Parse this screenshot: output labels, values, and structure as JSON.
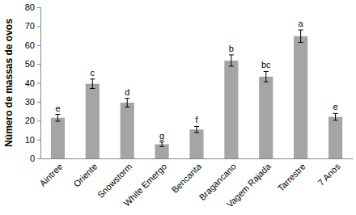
{
  "chart_data": {
    "type": "bar",
    "y_label": "Número de massas de ovos",
    "categories": [
      "Aintree",
      "Oriente",
      "Snowstorm",
      "White Emergo",
      "Bencanta",
      "Bragancano",
      "Vagem Rajada",
      "Tarrestre",
      "7 Anos"
    ],
    "values": [
      21.5,
      39.5,
      29.5,
      7.5,
      15.3,
      51.8,
      43.3,
      64.7,
      22
    ],
    "errors": [
      1.8,
      2.5,
      2.3,
      1.2,
      1.6,
      3,
      2.7,
      3.3,
      1.8
    ],
    "annotations": [
      "e",
      "c",
      "d",
      "g",
      "f",
      "b",
      "bc",
      "a",
      "e"
    ],
    "color": "#a5a5a5",
    "ylim": [
      0,
      80
    ],
    "yticks": [
      0,
      10,
      20,
      30,
      40,
      50,
      60,
      70,
      80
    ],
    "grid": false
  }
}
